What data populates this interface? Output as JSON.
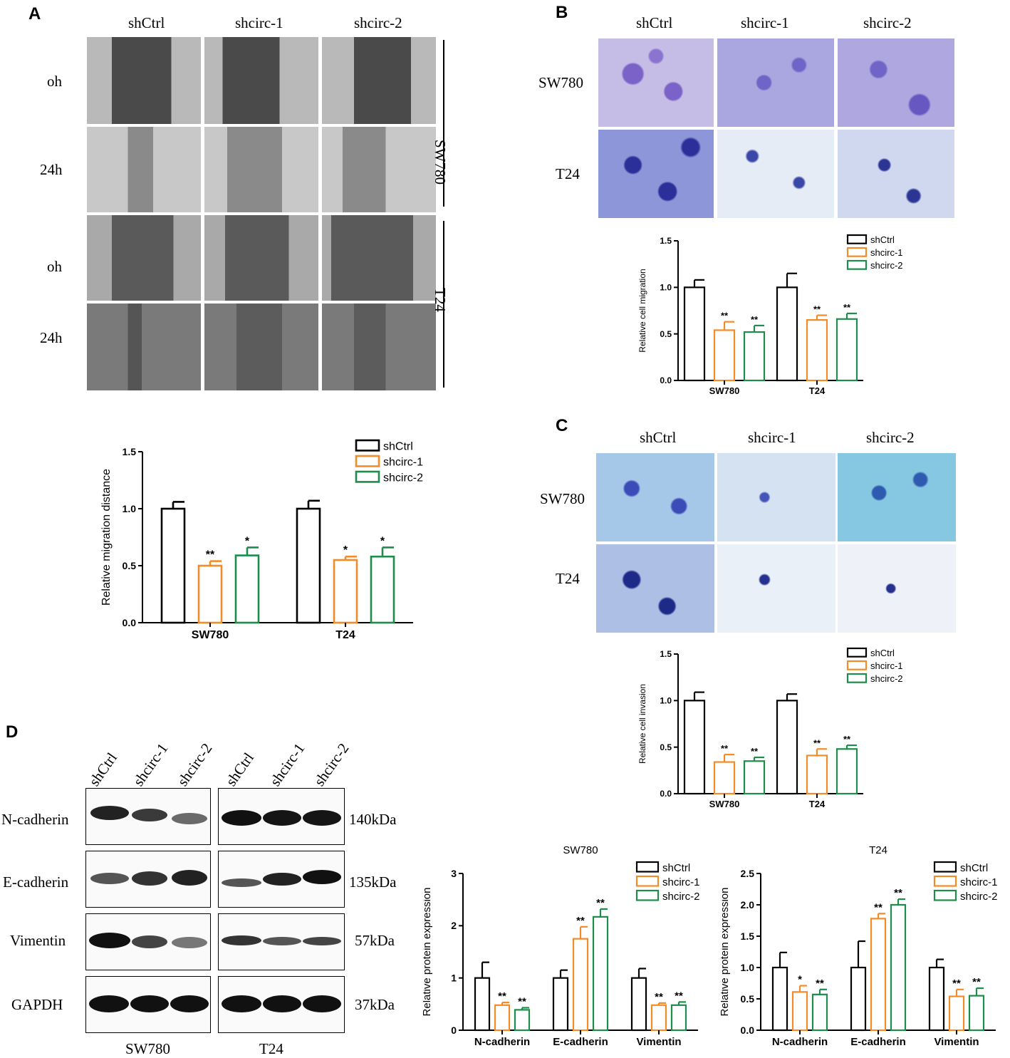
{
  "figure": {
    "panel_labels": {
      "A": "A",
      "B": "B",
      "C": "C",
      "D": "D"
    },
    "colors": {
      "shCtrl": "#000000",
      "shcirc1": "#f28c28",
      "shcirc2": "#1e8c4a"
    }
  },
  "panel_a": {
    "columns": [
      "shCtrl",
      "shcirc-1",
      "shcirc-2"
    ],
    "rows": [
      "oh",
      "24h",
      "oh",
      "24h"
    ],
    "cell_lines": [
      "SW780",
      "T24"
    ]
  },
  "panel_b": {
    "columns": [
      "shCtrl",
      "shcirc-1",
      "shcirc-2"
    ],
    "rows": [
      "SW780",
      "T24"
    ]
  },
  "panel_c": {
    "columns": [
      "shCtrl",
      "shcirc-1",
      "shcirc-2"
    ],
    "rows": [
      "SW780",
      "T24"
    ]
  },
  "panel_d": {
    "lanes": [
      "shCtrl",
      "shcirc-1",
      "shcirc-2",
      "shCtrl",
      "shcirc-1",
      "shcirc-2"
    ],
    "proteins": [
      "N-cadherin",
      "E-cadherin",
      "Vimentin",
      "GAPDH"
    ],
    "sizes": [
      "140kDa",
      "135kDa",
      "57kDa",
      "37kDa"
    ],
    "cell_lines": [
      "SW780",
      "T24"
    ]
  },
  "chart_data": [
    {
      "id": "chartA",
      "type": "bar",
      "title": "",
      "ylabel": "Relative  migration distance",
      "ylim": [
        0,
        1.5
      ],
      "yticks": [
        "0.0",
        "0.5",
        "1.0",
        "1.5"
      ],
      "categories": [
        "SW780",
        "T24"
      ],
      "legend": [
        "shCtrl",
        "shcirc-1",
        "shcirc-2"
      ],
      "series": [
        {
          "name": "shCtrl",
          "values": [
            1.0,
            1.0
          ],
          "errors": [
            0.06,
            0.07
          ],
          "sig": [
            "",
            ""
          ]
        },
        {
          "name": "shcirc-1",
          "values": [
            0.5,
            0.55
          ],
          "errors": [
            0.04,
            0.03
          ],
          "sig": [
            "**",
            "*"
          ]
        },
        {
          "name": "shcirc-2",
          "values": [
            0.59,
            0.58
          ],
          "errors": [
            0.07,
            0.08
          ],
          "sig": [
            "*",
            "*"
          ]
        }
      ]
    },
    {
      "id": "chartB",
      "type": "bar",
      "title": "",
      "ylabel": "Relative cell migration",
      "ylim": [
        0,
        1.5
      ],
      "yticks": [
        "0.0",
        "0.5",
        "1.0",
        "1.5"
      ],
      "categories": [
        "SW780",
        "T24"
      ],
      "legend": [
        "shCtrl",
        "shcirc-1",
        "shcirc-2"
      ],
      "series": [
        {
          "name": "shCtrl",
          "values": [
            1.0,
            1.0
          ],
          "errors": [
            0.08,
            0.15
          ],
          "sig": [
            "",
            ""
          ]
        },
        {
          "name": "shcirc-1",
          "values": [
            0.54,
            0.65
          ],
          "errors": [
            0.09,
            0.05
          ],
          "sig": [
            "**",
            "**"
          ]
        },
        {
          "name": "shcirc-2",
          "values": [
            0.52,
            0.66
          ],
          "errors": [
            0.07,
            0.06
          ],
          "sig": [
            "**",
            "**"
          ]
        }
      ]
    },
    {
      "id": "chartC",
      "type": "bar",
      "title": "",
      "ylabel": "Relative cell invasion",
      "ylim": [
        0,
        1.5
      ],
      "yticks": [
        "0.0",
        "0.5",
        "1.0",
        "1.5"
      ],
      "categories": [
        "SW780",
        "T24"
      ],
      "legend": [
        "shCtrl",
        "shcirc-1",
        "shcirc-2"
      ],
      "series": [
        {
          "name": "shCtrl",
          "values": [
            1.0,
            1.0
          ],
          "errors": [
            0.09,
            0.07
          ],
          "sig": [
            "",
            ""
          ]
        },
        {
          "name": "shcirc-1",
          "values": [
            0.34,
            0.41
          ],
          "errors": [
            0.08,
            0.07
          ],
          "sig": [
            "**",
            "**"
          ]
        },
        {
          "name": "shcirc-2",
          "values": [
            0.35,
            0.48
          ],
          "errors": [
            0.04,
            0.04
          ],
          "sig": [
            "**",
            "**"
          ]
        }
      ]
    },
    {
      "id": "chartD1",
      "type": "bar",
      "title": "SW780",
      "ylabel": "Relative protein expression",
      "ylim": [
        0,
        3
      ],
      "yticks": [
        "0",
        "1",
        "2",
        "3"
      ],
      "categories": [
        "N-cadherin",
        "E-cadherin",
        "Vimentin"
      ],
      "legend": [
        "shCtrl",
        "shcirc-1",
        "shcirc-2"
      ],
      "series": [
        {
          "name": "shCtrl",
          "values": [
            1.0,
            1.0,
            1.0
          ],
          "errors": [
            0.3,
            0.15,
            0.18
          ],
          "sig": [
            "",
            "",
            ""
          ]
        },
        {
          "name": "shcirc-1",
          "values": [
            0.48,
            1.75,
            0.48
          ],
          "errors": [
            0.05,
            0.23,
            0.04
          ],
          "sig": [
            "**",
            "**",
            "**"
          ]
        },
        {
          "name": "shcirc-2",
          "values": [
            0.39,
            2.17,
            0.48
          ],
          "errors": [
            0.04,
            0.15,
            0.06
          ],
          "sig": [
            "**",
            "**",
            "**"
          ]
        }
      ]
    },
    {
      "id": "chartD2",
      "type": "bar",
      "title": "T24",
      "ylabel": "Relative protein expression",
      "ylim": [
        0,
        2.5
      ],
      "yticks": [
        "0.0",
        "0.5",
        "1.0",
        "1.5",
        "2.0",
        "2.5"
      ],
      "categories": [
        "N-cadherin",
        "E-cadherin",
        "Vimentin"
      ],
      "legend": [
        "shCtrl",
        "shcirc-1",
        "shcirc-2"
      ],
      "series": [
        {
          "name": "shCtrl",
          "values": [
            1.0,
            1.0,
            1.0
          ],
          "errors": [
            0.24,
            0.42,
            0.13
          ],
          "sig": [
            "",
            "",
            ""
          ]
        },
        {
          "name": "shcirc-1",
          "values": [
            0.61,
            1.78,
            0.54
          ],
          "errors": [
            0.1,
            0.08,
            0.11
          ],
          "sig": [
            "*",
            "**",
            "**"
          ]
        },
        {
          "name": "shcirc-2",
          "values": [
            0.57,
            2.0,
            0.55
          ],
          "errors": [
            0.08,
            0.09,
            0.12
          ],
          "sig": [
            "**",
            "**",
            "**"
          ]
        }
      ]
    }
  ]
}
